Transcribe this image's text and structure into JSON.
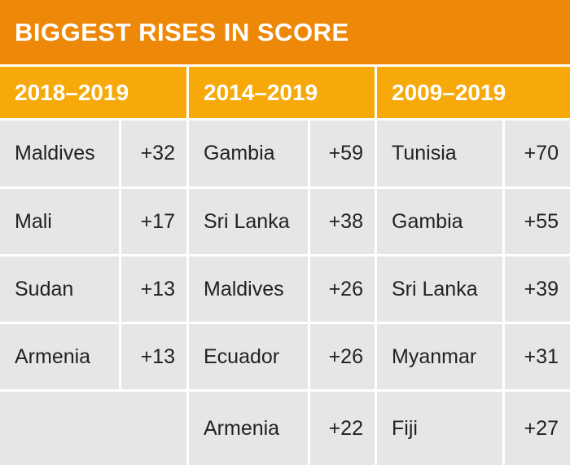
{
  "title": "BIGGEST RISES IN SCORE",
  "colors": {
    "title_bg": "#ee8808",
    "header_bg": "#f7a90a",
    "cell_bg": "#e6e6e6",
    "text_dark": "#222222",
    "text_light": "#ffffff"
  },
  "chart_data": {
    "type": "table",
    "title": "BIGGEST RISES IN SCORE",
    "columns": [
      {
        "period": "2018–2019",
        "rows": [
          {
            "country": "Maldives",
            "change": "+32"
          },
          {
            "country": "Mali",
            "change": "+17"
          },
          {
            "country": "Sudan",
            "change": "+13"
          },
          {
            "country": "Armenia",
            "change": "+13"
          }
        ]
      },
      {
        "period": "2014–2019",
        "rows": [
          {
            "country": "Gambia",
            "change": "+59"
          },
          {
            "country": "Sri Lanka",
            "change": "+38"
          },
          {
            "country": "Maldives",
            "change": "+26"
          },
          {
            "country": "Ecuador",
            "change": "+26"
          },
          {
            "country": "Armenia",
            "change": "+22"
          }
        ]
      },
      {
        "period": "2009–2019",
        "rows": [
          {
            "country": "Tunisia",
            "change": "+70"
          },
          {
            "country": "Gambia",
            "change": "+55"
          },
          {
            "country": "Sri Lanka",
            "change": "+39"
          },
          {
            "country": "Myanmar",
            "change": "+31"
          },
          {
            "country": "Fiji",
            "change": "+27"
          }
        ]
      }
    ]
  }
}
